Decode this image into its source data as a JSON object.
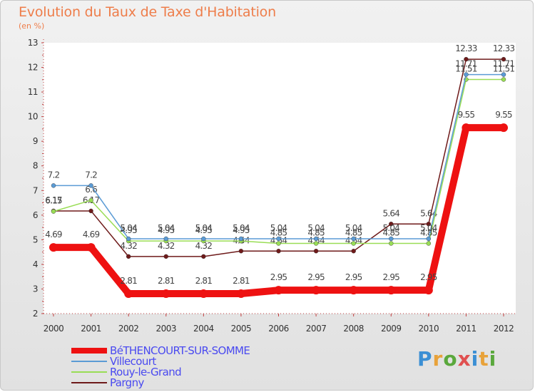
{
  "chart_data": {
    "type": "line",
    "title": "Evolution du Taux de Taxe d'Habitation",
    "subtitle": "(en %)",
    "x": [
      "2000",
      "2001",
      "2002",
      "2003",
      "2004",
      "2005",
      "2006",
      "2007",
      "2008",
      "2009",
      "2010",
      "2011",
      "2012"
    ],
    "ylim": [
      2,
      13
    ],
    "yticks": [
      "2",
      "3",
      "4",
      "5",
      "6",
      "7",
      "8",
      "9",
      "10",
      "11",
      "12",
      "13"
    ],
    "grid": false,
    "series": [
      {
        "name": "Pargny",
        "color": "#6e1a1a",
        "values": [
          6.17,
          6.17,
          4.32,
          4.32,
          4.32,
          4.54,
          4.54,
          4.54,
          4.54,
          5.64,
          5.64,
          12.33,
          12.33
        ],
        "labels": [
          "6.17",
          "6.17",
          "4.32",
          "4.32",
          "4.32",
          "4.54",
          "4.54",
          "4.54",
          "4.54",
          "5.64",
          "5.64",
          "12.33",
          "12.33"
        ]
      },
      {
        "name": "Rouy-le-Grand",
        "color": "#99dd55",
        "values": [
          6.15,
          6.6,
          4.95,
          4.95,
          4.95,
          4.95,
          4.85,
          4.85,
          4.85,
          4.85,
          4.85,
          11.51,
          11.51
        ],
        "labels": [
          "6.15",
          "6.6",
          "4.95",
          "4.95",
          "4.95",
          "4.95",
          "4.85",
          "4.85",
          "4.85",
          "4.85",
          "4.85",
          "11.51",
          "11.51"
        ]
      },
      {
        "name": "Villecourt",
        "color": "#5b9bd5",
        "values": [
          7.2,
          7.2,
          5.04,
          5.04,
          5.04,
          5.04,
          5.04,
          5.04,
          5.04,
          5.04,
          5.04,
          11.71,
          11.71
        ],
        "labels": [
          "7.2",
          "7.2",
          "5.04",
          "5.04",
          "5.04",
          "5.04",
          "5.04",
          "5.04",
          "5.04",
          "5.04",
          "5.04",
          "11.71",
          "11.71"
        ]
      },
      {
        "name": "BéTHENCOURT-SUR-SOMME",
        "color": "#ee1111",
        "values": [
          4.69,
          4.69,
          2.81,
          2.81,
          2.81,
          2.81,
          2.95,
          2.95,
          2.95,
          2.95,
          2.95,
          9.55,
          9.55
        ],
        "labels": [
          "4.69",
          "4.69",
          "2.81",
          "2.81",
          "2.81",
          "2.81",
          "2.95",
          "2.95",
          "2.95",
          "2.95",
          "2.95",
          "9.55",
          "9.55"
        ]
      }
    ],
    "legend_order": [
      "BéTHENCOURT-SUR-SOMME",
      "Villecourt",
      "Rouy-le-Grand",
      "Pargny"
    ],
    "legend_position": "bottom-left"
  },
  "branding": {
    "logo_text": "Proxiti"
  }
}
